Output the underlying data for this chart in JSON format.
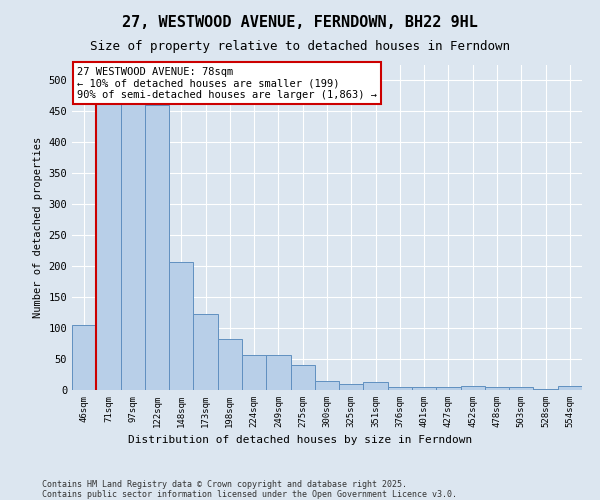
{
  "title": "27, WESTWOOD AVENUE, FERNDOWN, BH22 9HL",
  "subtitle": "Size of property relative to detached houses in Ferndown",
  "xlabel": "Distribution of detached houses by size in Ferndown",
  "ylabel": "Number of detached properties",
  "footer": "Contains HM Land Registry data © Crown copyright and database right 2025.\nContains public sector information licensed under the Open Government Licence v3.0.",
  "categories": [
    "46sqm",
    "71sqm",
    "97sqm",
    "122sqm",
    "148sqm",
    "173sqm",
    "198sqm",
    "224sqm",
    "249sqm",
    "275sqm",
    "300sqm",
    "325sqm",
    "351sqm",
    "376sqm",
    "401sqm",
    "427sqm",
    "452sqm",
    "478sqm",
    "503sqm",
    "528sqm",
    "554sqm"
  ],
  "values": [
    105,
    490,
    490,
    460,
    207,
    122,
    83,
    57,
    57,
    40,
    14,
    10,
    13,
    5,
    5,
    5,
    7,
    5,
    5,
    2,
    7
  ],
  "bar_color": "#b8cfe8",
  "bar_edge_color": "#6090c0",
  "background_color": "#dce6f0",
  "grid_color": "#c8d4e4",
  "red_line_x": 0.5,
  "annotation_title": "27 WESTWOOD AVENUE: 78sqm",
  "annotation_line1": "← 10% of detached houses are smaller (199)",
  "annotation_line2": "90% of semi-detached houses are larger (1,863) →",
  "ylim": [
    0,
    525
  ],
  "yticks": [
    0,
    50,
    100,
    150,
    200,
    250,
    300,
    350,
    400,
    450,
    500
  ],
  "title_fontsize": 11,
  "subtitle_fontsize": 9,
  "annotation_box_color": "#ffffff",
  "annotation_box_edge": "#cc0000",
  "red_line_color": "#cc0000"
}
